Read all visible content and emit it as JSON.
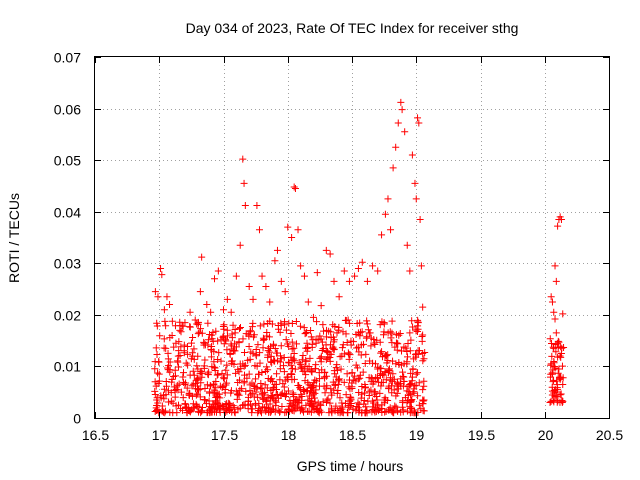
{
  "chart_data": {
    "type": "scatter",
    "title": "Day 034 of 2023, Rate Of TEC Index for receiver sthg",
    "xlabel": "GPS time / hours",
    "ylabel": "ROTI / TECUs",
    "xlim": [
      16.5,
      20.5
    ],
    "ylim": [
      0,
      0.07
    ],
    "xticks": [
      "16.5",
      "17",
      "17.5",
      "18",
      "18.5",
      "19",
      "19.5",
      "20",
      "20.5"
    ],
    "yticks": [
      "0",
      "0.01",
      "0.02",
      "0.03",
      "0.04",
      "0.05",
      "0.06",
      "0.07"
    ],
    "grid": true,
    "marker": "+",
    "series_color": "#ff0000",
    "series": [
      {
        "name": "ROTI",
        "points": [
          [
            16.97,
            0.0245
          ],
          [
            16.99,
            0.0235
          ],
          [
            17.01,
            0.029
          ],
          [
            17.02,
            0.0278
          ],
          [
            17.04,
            0.021
          ],
          [
            17.06,
            0.0235
          ],
          [
            17.08,
            0.022
          ],
          [
            17.1,
            0.016
          ],
          [
            17.13,
            0.0145
          ],
          [
            17.16,
            0.017
          ],
          [
            17.2,
            0.0185
          ],
          [
            17.24,
            0.0205
          ],
          [
            17.28,
            0.019
          ],
          [
            17.32,
            0.0245
          ],
          [
            17.33,
            0.0312
          ],
          [
            17.37,
            0.022
          ],
          [
            17.4,
            0.0205
          ],
          [
            17.43,
            0.027
          ],
          [
            17.46,
            0.0285
          ],
          [
            17.5,
            0.021
          ],
          [
            17.53,
            0.023
          ],
          [
            17.56,
            0.0205
          ],
          [
            17.6,
            0.0275
          ],
          [
            17.63,
            0.0335
          ],
          [
            17.65,
            0.0502
          ],
          [
            17.66,
            0.0455
          ],
          [
            17.67,
            0.0412
          ],
          [
            17.7,
            0.0255
          ],
          [
            17.73,
            0.023
          ],
          [
            17.76,
            0.0412
          ],
          [
            17.78,
            0.0365
          ],
          [
            17.8,
            0.0275
          ],
          [
            17.83,
            0.0255
          ],
          [
            17.86,
            0.0225
          ],
          [
            17.9,
            0.0305
          ],
          [
            17.92,
            0.0325
          ],
          [
            17.95,
            0.0265
          ],
          [
            17.98,
            0.0245
          ],
          [
            18.0,
            0.037
          ],
          [
            18.03,
            0.035
          ],
          [
            18.05,
            0.0448
          ],
          [
            18.06,
            0.0445
          ],
          [
            18.08,
            0.0365
          ],
          [
            18.1,
            0.0295
          ],
          [
            18.13,
            0.0275
          ],
          [
            18.16,
            0.0225
          ],
          [
            18.2,
            0.0195
          ],
          [
            18.23,
            0.0282
          ],
          [
            18.26,
            0.0218
          ],
          [
            18.3,
            0.0325
          ],
          [
            18.33,
            0.0318
          ],
          [
            18.36,
            0.0265
          ],
          [
            18.4,
            0.0235
          ],
          [
            18.44,
            0.0285
          ],
          [
            18.48,
            0.0265
          ],
          [
            18.52,
            0.0275
          ],
          [
            18.55,
            0.029
          ],
          [
            18.58,
            0.0302
          ],
          [
            18.62,
            0.0265
          ],
          [
            18.66,
            0.0295
          ],
          [
            18.7,
            0.0285
          ],
          [
            18.73,
            0.0355
          ],
          [
            18.76,
            0.0395
          ],
          [
            18.78,
            0.0425
          ],
          [
            18.8,
            0.0365
          ],
          [
            18.82,
            0.0485
          ],
          [
            18.84,
            0.0525
          ],
          [
            18.86,
            0.0572
          ],
          [
            18.88,
            0.0612
          ],
          [
            18.89,
            0.0598
          ],
          [
            18.91,
            0.0555
          ],
          [
            18.93,
            0.0335
          ],
          [
            18.95,
            0.0285
          ],
          [
            18.97,
            0.051
          ],
          [
            18.99,
            0.0455
          ],
          [
            19.0,
            0.0425
          ],
          [
            19.01,
            0.0582
          ],
          [
            19.02,
            0.0572
          ],
          [
            19.03,
            0.0385
          ],
          [
            19.04,
            0.0295
          ],
          [
            19.05,
            0.0215
          ],
          [
            19.06,
            0.0115
          ],
          [
            17.0,
            0.0085
          ],
          [
            17.1,
            0.0075
          ],
          [
            17.2,
            0.0065
          ],
          [
            17.3,
            0.0095
          ],
          [
            17.4,
            0.0062
          ],
          [
            17.5,
            0.0078
          ],
          [
            17.6,
            0.0052
          ],
          [
            17.7,
            0.0085
          ],
          [
            17.8,
            0.0045
          ],
          [
            17.9,
            0.0065
          ],
          [
            18.0,
            0.0075
          ],
          [
            18.1,
            0.0055
          ],
          [
            18.2,
            0.0045
          ],
          [
            18.3,
            0.0058
          ],
          [
            18.4,
            0.0072
          ],
          [
            18.5,
            0.0088
          ],
          [
            18.6,
            0.0065
          ],
          [
            18.7,
            0.0095
          ],
          [
            18.8,
            0.0078
          ],
          [
            18.9,
            0.0062
          ],
          [
            19.0,
            0.0085
          ],
          [
            19.05,
            0.0055
          ],
          [
            16.98,
            0.0035
          ],
          [
            17.15,
            0.0025
          ],
          [
            17.45,
            0.0042
          ],
          [
            17.75,
            0.0025
          ],
          [
            17.85,
            0.0018
          ],
          [
            18.2,
            0.0022
          ],
          [
            18.25,
            0.0015
          ],
          [
            18.45,
            0.0028
          ],
          [
            18.75,
            0.0035
          ],
          [
            18.95,
            0.0022
          ],
          [
            19.05,
            0.0035
          ],
          [
            17.05,
            0.0135
          ],
          [
            17.25,
            0.0115
          ],
          [
            17.35,
            0.0145
          ],
          [
            17.55,
            0.0125
          ],
          [
            17.65,
            0.0105
          ],
          [
            17.85,
            0.0135
          ],
          [
            17.95,
            0.0115
          ],
          [
            18.05,
            0.0125
          ],
          [
            18.15,
            0.0145
          ],
          [
            18.35,
            0.0135
          ],
          [
            18.55,
            0.0165
          ],
          [
            18.65,
            0.0155
          ],
          [
            18.75,
            0.0185
          ],
          [
            18.85,
            0.0145
          ],
          [
            18.95,
            0.0165
          ],
          [
            19.05,
            0.0125
          ],
          [
            20.05,
            0.0235
          ],
          [
            20.06,
            0.0225
          ],
          [
            20.07,
            0.0205
          ],
          [
            20.08,
            0.0192
          ],
          [
            20.08,
            0.0295
          ],
          [
            20.09,
            0.0265
          ],
          [
            20.1,
            0.0372
          ],
          [
            20.11,
            0.0385
          ],
          [
            20.12,
            0.039
          ],
          [
            20.13,
            0.0385
          ],
          [
            20.14,
            0.0202
          ],
          [
            20.13,
            0.0125
          ],
          [
            20.12,
            0.0075
          ],
          [
            20.1,
            0.0055
          ],
          [
            20.08,
            0.0042
          ],
          [
            20.06,
            0.0085
          ],
          [
            20.05,
            0.0105
          ],
          [
            20.07,
            0.0135
          ],
          [
            20.09,
            0.0165
          ],
          [
            20.11,
            0.0095
          ],
          [
            20.12,
            0.0045
          ],
          [
            20.14,
            0.0065
          ],
          [
            20.06,
            0.0052
          ],
          [
            20.1,
            0.0118
          ]
        ]
      }
    ],
    "dense_band": [
      {
        "x_start": 16.96,
        "x_end": 19.07,
        "y_min": 0.001,
        "y_max": 0.019
      },
      {
        "x_start": 20.04,
        "x_end": 20.15,
        "y_min": 0.003,
        "y_max": 0.016
      }
    ]
  }
}
